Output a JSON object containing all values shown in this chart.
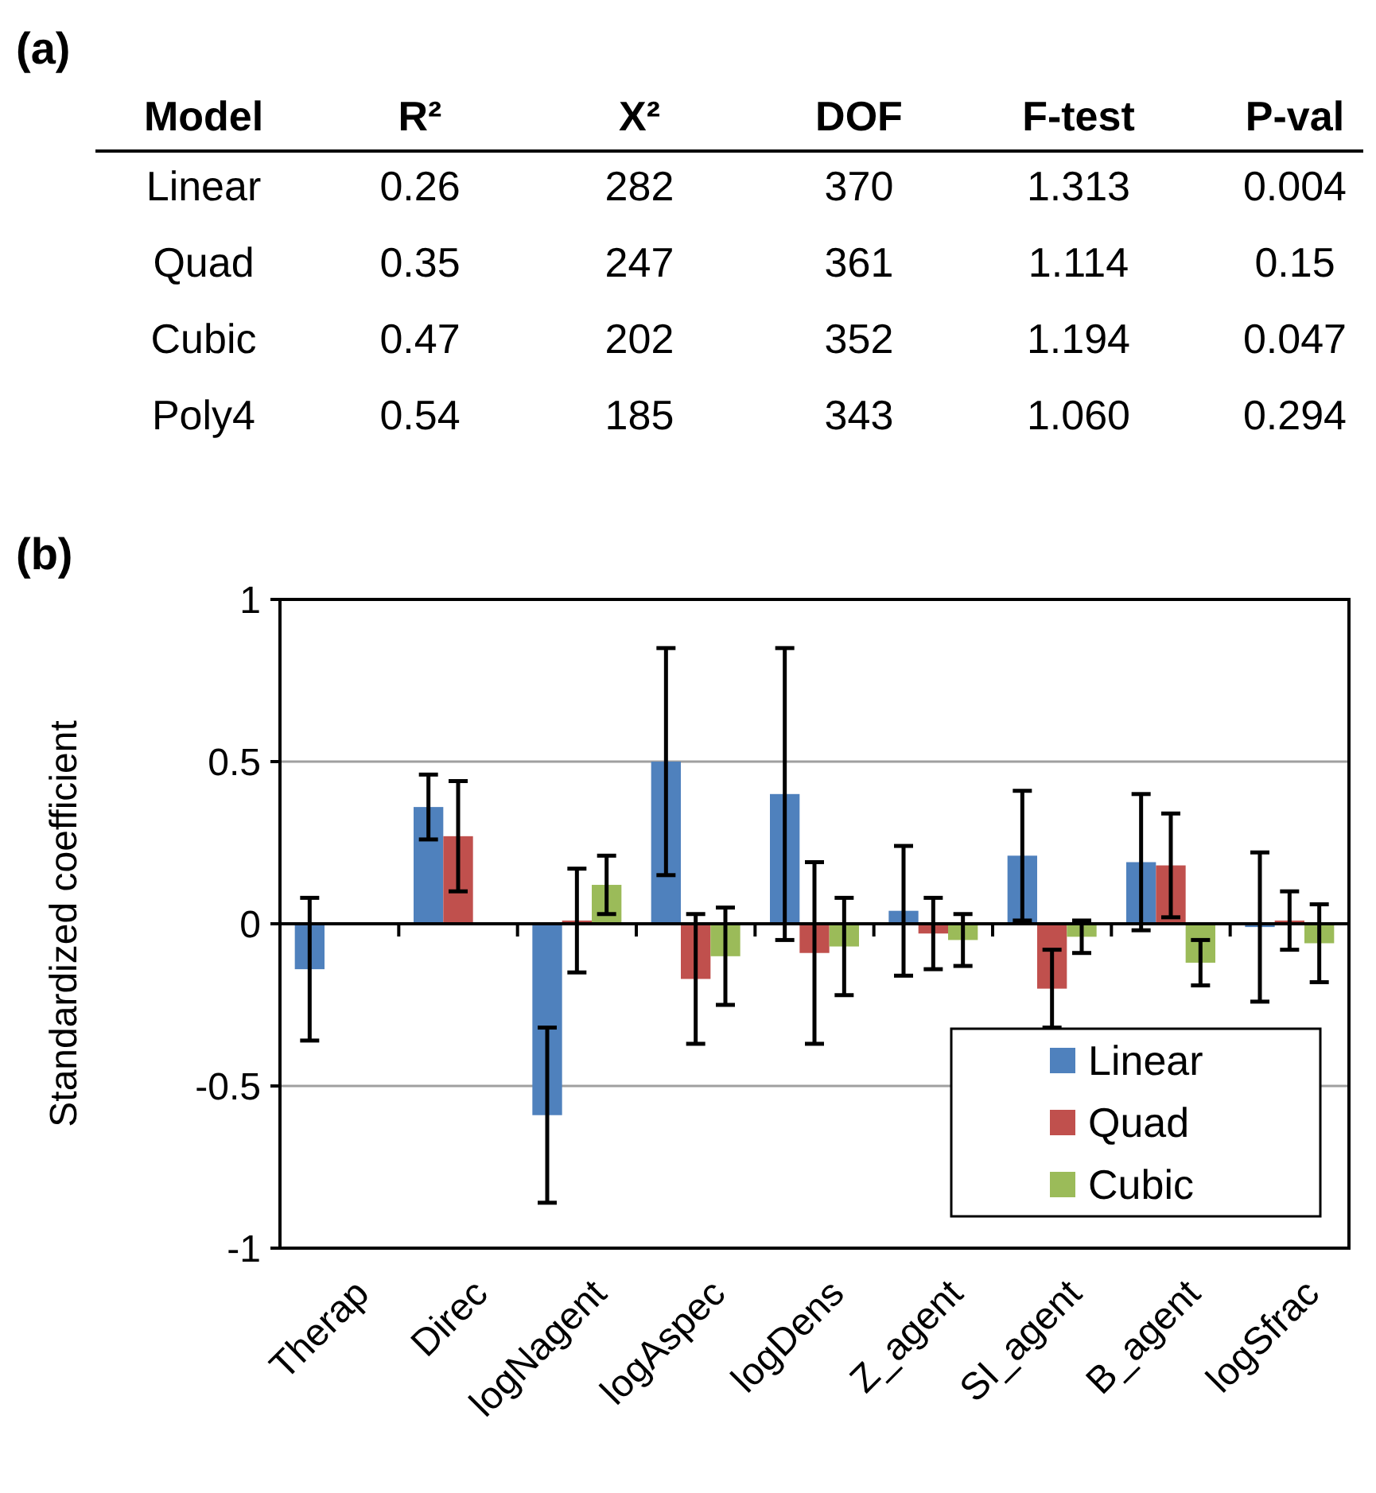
{
  "chart_data": [
    {
      "type": "other",
      "title": "(a)",
      "categories": [
        "Model",
        "R²",
        "X²",
        "DOF",
        "F-test",
        "P-val"
      ],
      "y_categories": [
        "Linear",
        "Quad",
        "Cubic",
        "Poly4"
      ],
      "cell_labels": [
        [
          "0.26",
          "282",
          "370",
          "1.313",
          "0.004"
        ],
        [
          "0.35",
          "247",
          "361",
          "1.114",
          "0.15"
        ],
        [
          "0.47",
          "202",
          "352",
          "1.194",
          "0.047"
        ],
        [
          "0.54",
          "185",
          "343",
          "1.060",
          "0.294"
        ]
      ]
    },
    {
      "type": "bar",
      "title": "(b)",
      "ylabel": "Standardized coefficient",
      "categories": [
        "Therap",
        "Direc",
        "logNagent",
        "logAspec",
        "logDens",
        "Z_agent",
        "SI_agent",
        "B_agent",
        "logSfrac"
      ],
      "series": [
        {
          "name": "Linear",
          "color": "#4f81bd",
          "values": [
            -0.14,
            0.36,
            -0.59,
            0.5,
            0.4,
            0.04,
            0.21,
            0.19,
            -0.01
          ],
          "errors": [
            0.22,
            0.1,
            0.27,
            0.35,
            0.45,
            0.2,
            0.2,
            0.21,
            0.23
          ]
        },
        {
          "name": "Quad",
          "color": "#c0504d",
          "values": [
            null,
            0.27,
            0.01,
            -0.17,
            -0.09,
            -0.03,
            -0.2,
            0.18,
            0.01
          ],
          "errors": [
            null,
            0.17,
            0.16,
            0.2,
            0.28,
            0.11,
            0.12,
            0.16,
            0.09
          ]
        },
        {
          "name": "Cubic",
          "color": "#9bbb59",
          "values": [
            null,
            null,
            0.12,
            -0.1,
            -0.07,
            -0.05,
            -0.04,
            -0.12,
            -0.06
          ],
          "errors": [
            null,
            null,
            0.09,
            0.15,
            0.15,
            0.08,
            0.05,
            0.07,
            0.12
          ]
        }
      ],
      "ylim": [
        -1,
        1
      ],
      "yticks": [
        -1,
        {
          "value": -0.5,
          "label": "-0.5"
        },
        0,
        0.5,
        1
      ],
      "grid": "y",
      "legend": "bottom right"
    }
  ]
}
